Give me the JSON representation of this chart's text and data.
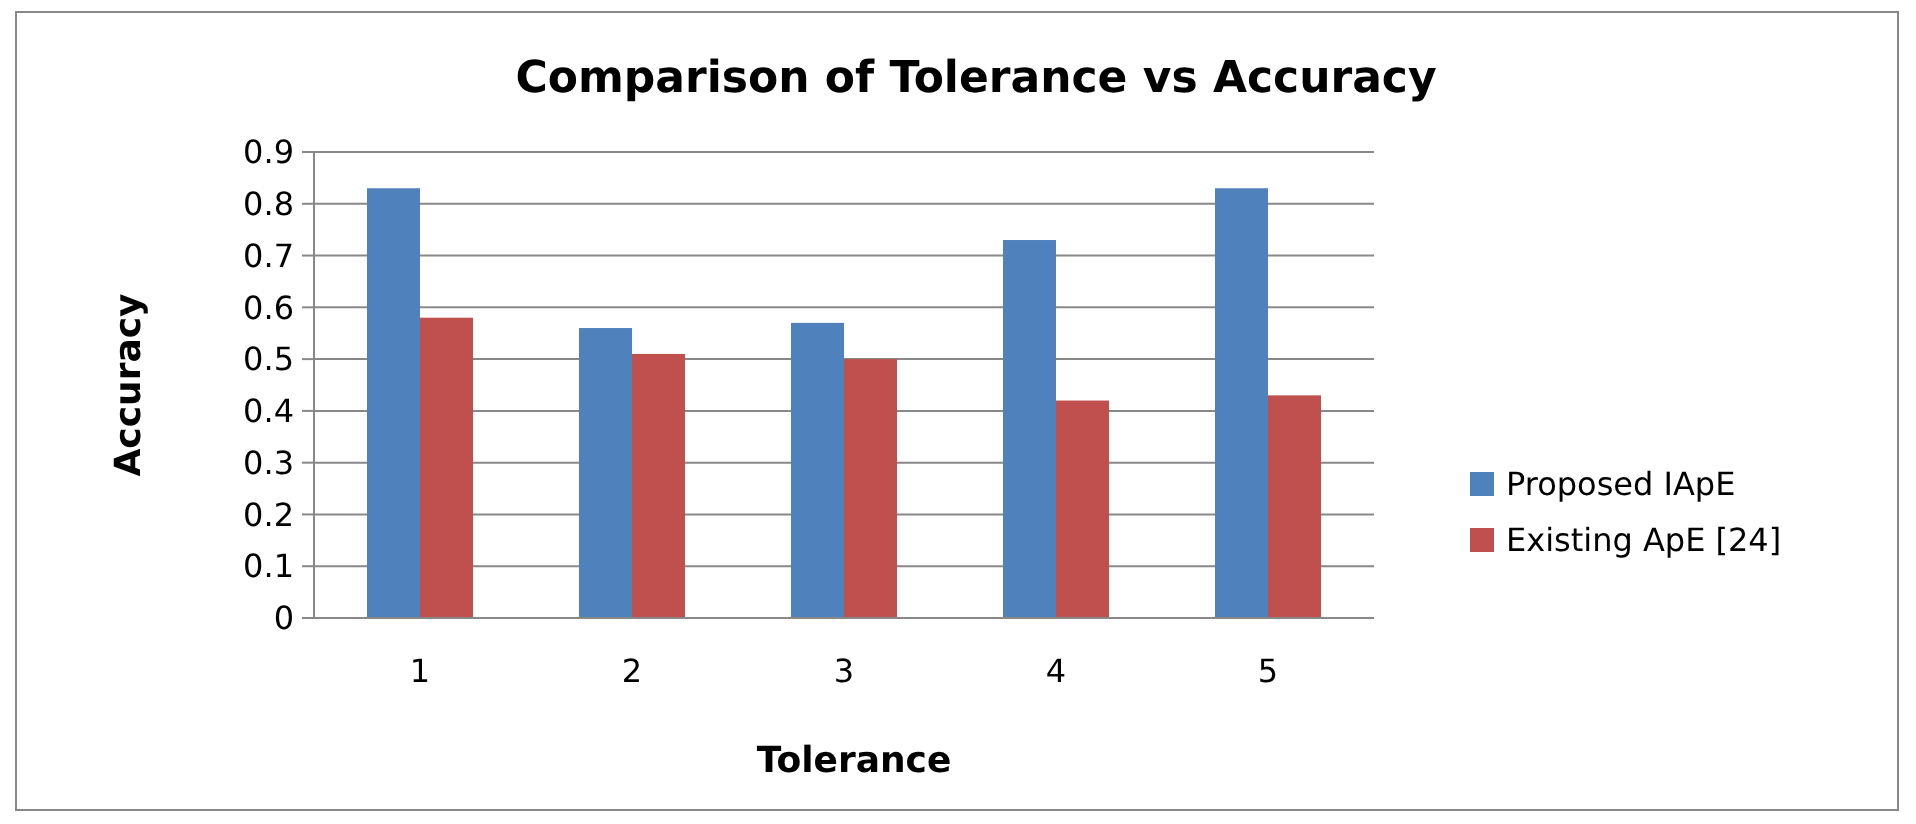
{
  "chart_data": {
    "type": "bar",
    "title": "Comparison of Tolerance vs Accuracy",
    "xlabel": "Tolerance",
    "ylabel": "Accuracy",
    "categories": [
      "1",
      "2",
      "3",
      "4",
      "5"
    ],
    "series": [
      {
        "name": "Proposed IApE",
        "color": "#4f81bd",
        "values": [
          0.83,
          0.56,
          0.57,
          0.73,
          0.83
        ]
      },
      {
        "name": "Existing ApE [24]",
        "color": "#c0504d",
        "values": [
          0.58,
          0.51,
          0.5,
          0.42,
          0.43
        ]
      }
    ],
    "ylim": [
      0,
      0.9
    ],
    "yticks": [
      {
        "value": 0,
        "label": "0"
      },
      0.1,
      0.2,
      0.3,
      0.4,
      0.5,
      0.6,
      0.7,
      0.8,
      0.9
    ],
    "grid": "y",
    "legend": "right"
  }
}
